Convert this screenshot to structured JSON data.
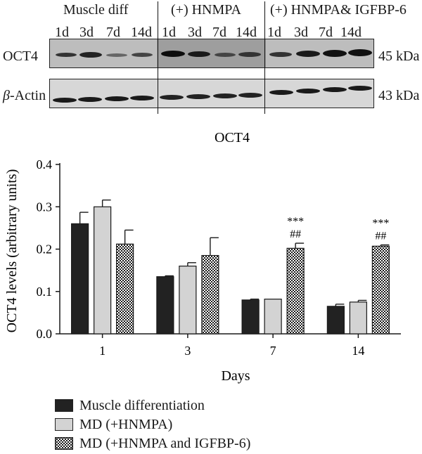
{
  "blot": {
    "groups": [
      "Muscle diff",
      "(+) HNMPA",
      "(+) HNMPA& IGFBP-6"
    ],
    "lanes": [
      "1d",
      "3d",
      "7d",
      "14d",
      "1d",
      "3d",
      "7d",
      "14d",
      "1d",
      "3d",
      "7d",
      "14d"
    ],
    "rows": [
      {
        "label": "OCT4",
        "size": "45 kDa"
      },
      {
        "label_prefix": "β",
        "label_rest": "-Actin",
        "size": "43 kDa"
      }
    ]
  },
  "chart_data": {
    "type": "bar",
    "title": "OCT4",
    "xlabel": "Days",
    "ylabel": "OCT4 levels (arbitrary units)",
    "categories": [
      "1",
      "3",
      "7",
      "14"
    ],
    "ylim": [
      0,
      0.4
    ],
    "yticks": [
      "0.0",
      "0.1",
      "0.2",
      "0.3",
      "0.4"
    ],
    "series": [
      {
        "name": "Muscle differentiation",
        "values": [
          0.26,
          0.135,
          0.08,
          0.065
        ],
        "errors": [
          0.027,
          0.002,
          0.002,
          0.005
        ],
        "color": "#222222"
      },
      {
        "name": "MD (+HNMPA)",
        "values": [
          0.3,
          0.16,
          0.082,
          0.075
        ],
        "errors": [
          0.016,
          0.008,
          0.0,
          0.004
        ],
        "color": "#d3d3d3"
      },
      {
        "name": "MD (+HNMPA and IGFBP-6)",
        "values": [
          0.212,
          0.185,
          0.202,
          0.207
        ],
        "errors": [
          0.033,
          0.042,
          0.012,
          0.003
        ],
        "pattern": "crosshatch"
      }
    ],
    "annotations": [
      {
        "category": "7",
        "lines": [
          "***",
          "##"
        ]
      },
      {
        "category": "14",
        "lines": [
          "***",
          "##"
        ]
      }
    ]
  }
}
